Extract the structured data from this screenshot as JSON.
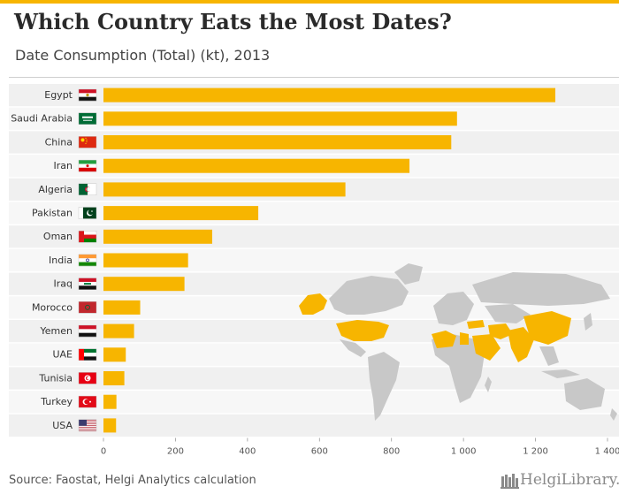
{
  "header": {
    "title": "Which Country Eats the Most Dates?",
    "subtitle": "Date Consumption (Total) (kt), 2013"
  },
  "footer": {
    "source": "Source: Faostat, Helgi Analytics calculation",
    "logo_text": "HelgiLibrary."
  },
  "colors": {
    "bar": "#f7b500",
    "band_dark": "#f0f0f0",
    "band_light": "#f7f7f7",
    "land": "#c8c8c8",
    "land_highlight": "#f7b500",
    "accent": "#f7b500"
  },
  "chart_data": {
    "type": "bar",
    "orientation": "horizontal",
    "title": "Which Country Eats the Most Dates?",
    "subtitle": "Date Consumption (Total) (kt), 2013",
    "xlabel": "",
    "ylabel": "",
    "xlim": [
      0,
      1400
    ],
    "ticks": [
      0,
      200,
      400,
      600,
      800,
      1000,
      1200,
      1400
    ],
    "tick_labels": [
      "0",
      "200",
      "400",
      "600",
      "800",
      "1 000",
      "1 200",
      "1 400"
    ],
    "categories": [
      "Egypt",
      "Saudi Arabia",
      "China",
      "Iran",
      "Algeria",
      "Pakistan",
      "Oman",
      "India",
      "Iraq",
      "Morocco",
      "Yemen",
      "UAE",
      "Tunisia",
      "Turkey",
      "USA"
    ],
    "values": [
      1255,
      982,
      966,
      850,
      672,
      430,
      302,
      235,
      225,
      102,
      85,
      62,
      58,
      36,
      35
    ],
    "flags": [
      "egypt-flag",
      "saudi-arabia-flag",
      "china-flag",
      "iran-flag",
      "algeria-flag",
      "pakistan-flag",
      "oman-flag",
      "india-flag",
      "iraq-flag",
      "morocco-flag",
      "yemen-flag",
      "uae-flag",
      "tunisia-flag",
      "turkey-flag",
      "usa-flag"
    ]
  }
}
